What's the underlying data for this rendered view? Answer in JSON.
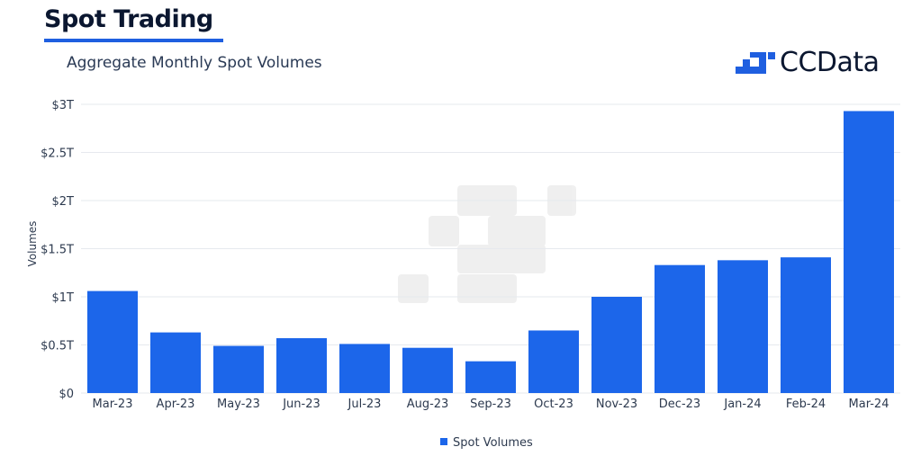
{
  "header": {
    "title": "Spot Trading"
  },
  "logo": {
    "brand": "CCData",
    "icon": "ccdata-logo-icon"
  },
  "colors": {
    "bar": "#1c66ea",
    "grid": "#e6e9ee",
    "axis": "#2d3a4f",
    "logo_icon": "#1f5fe0"
  },
  "chart_data": {
    "type": "bar",
    "title": "Aggregate Monthly Spot Volumes",
    "xlabel": "",
    "ylabel": "Volumes",
    "ylim": [
      0,
      3
    ],
    "yticks": [
      0,
      0.5,
      1,
      1.5,
      2,
      2.5,
      3
    ],
    "ytick_labels": [
      "$0",
      "$0.5T",
      "$1T",
      "$1.5T",
      "$2T",
      "$2.5T",
      "$3T"
    ],
    "categories": [
      "Mar-23",
      "Apr-23",
      "May-23",
      "Jun-23",
      "Jul-23",
      "Aug-23",
      "Sep-23",
      "Oct-23",
      "Nov-23",
      "Dec-23",
      "Jan-24",
      "Feb-24",
      "Mar-24"
    ],
    "series": [
      {
        "name": "Spot Volumes",
        "values": [
          1.06,
          0.63,
          0.49,
          0.57,
          0.51,
          0.47,
          0.33,
          0.65,
          1.0,
          1.33,
          1.38,
          1.41,
          2.93
        ]
      }
    ],
    "grid": true,
    "legend": "bottom-center"
  }
}
